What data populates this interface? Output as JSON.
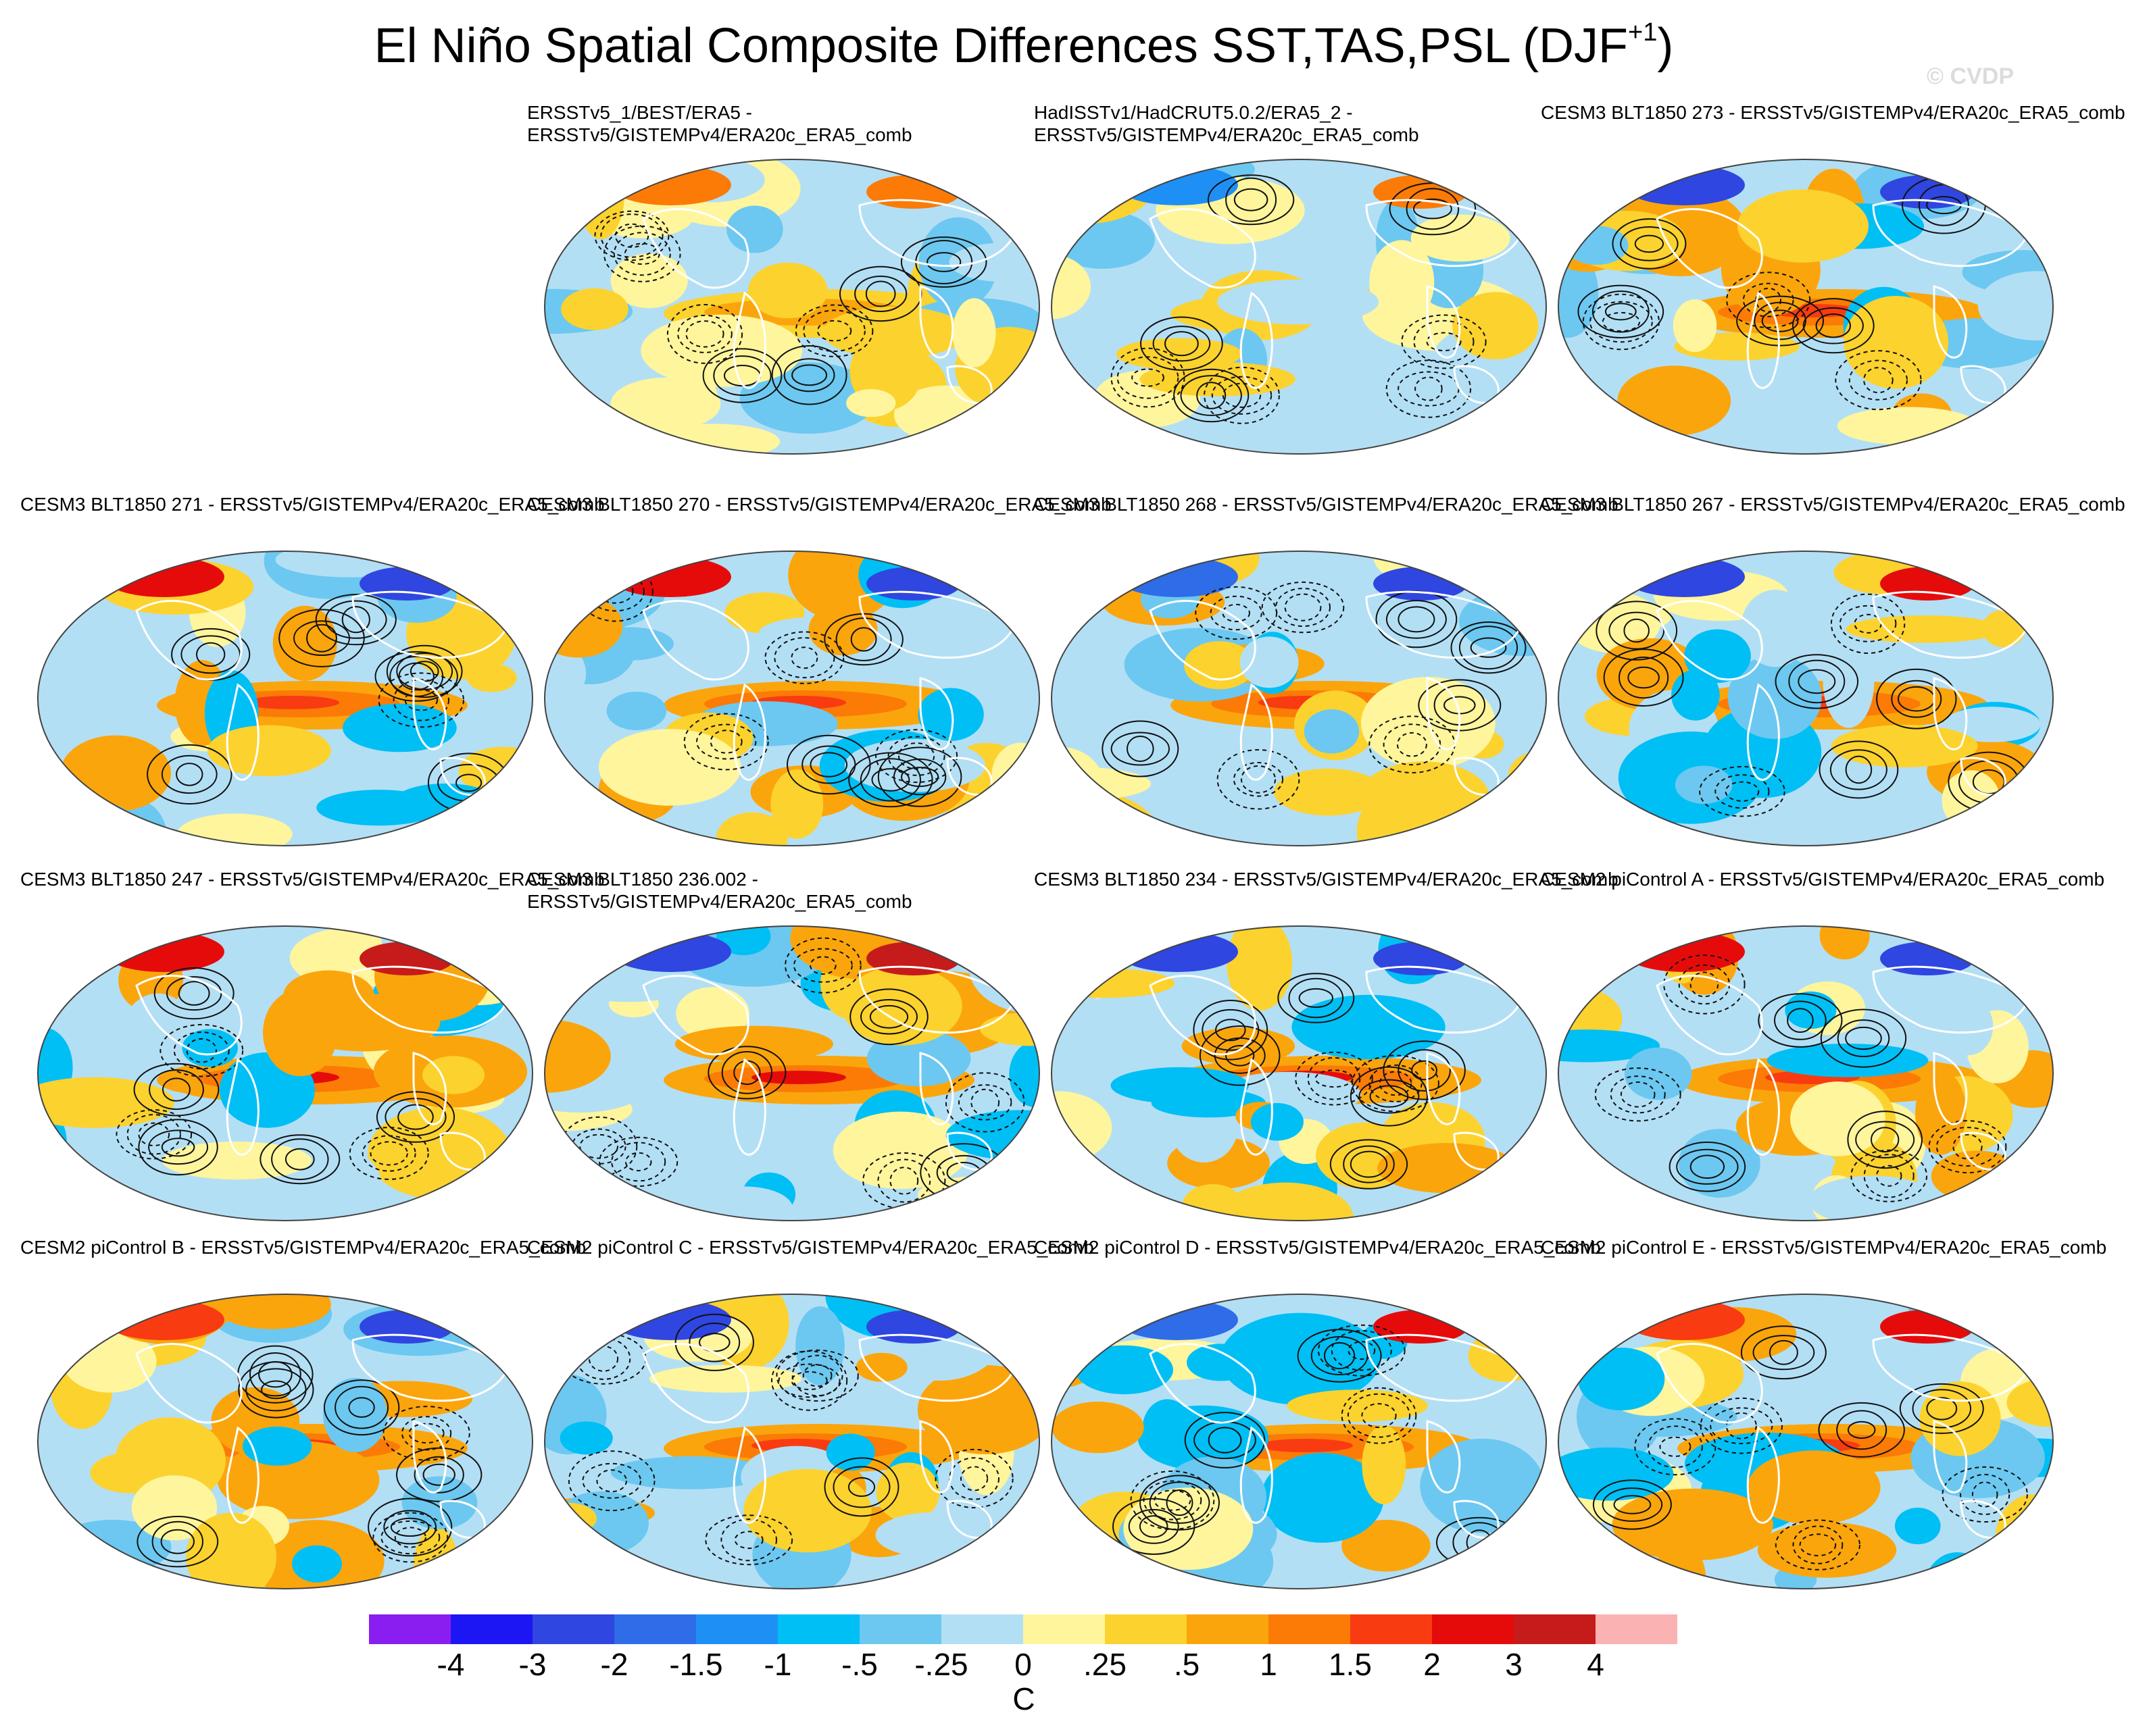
{
  "title": {
    "main": "El Niño Spatial Composite Differences SST,TAS,PSL (DJF",
    "sup": "+1",
    "close": ")"
  },
  "watermark": "© CVDP",
  "colorbar": {
    "units": "C",
    "labels": [
      "-4",
      "-3",
      "-2",
      "-1.5",
      "-1",
      "-.5",
      "-.25",
      "0",
      ".25",
      ".5",
      "1",
      "1.5",
      "2",
      "3",
      "4"
    ],
    "colors": [
      "#8a1ef0",
      "#1c16f5",
      "#2f46e0",
      "#2e6ce8",
      "#1e90f5",
      "#00bff5",
      "#6cc8f0",
      "#b3dff5",
      "#fff59d",
      "#fcd22e",
      "#fba50c",
      "#fb7b06",
      "#f83b11",
      "#e60b0b",
      "#c61b1b",
      "#fbb2b2"
    ]
  },
  "panels": [
    {
      "title": "ERSSTv5_1/BEST/ERA5 -\nERSSTv5/GISTEMPv4/ERA20c_ERA5_comb",
      "intensity": 0.55,
      "seed": 1
    },
    {
      "title": "HadISSTv1/HadCRUT5.0.2/ERA5_2 -\nERSSTv5/GISTEMPv4/ERA20c_ERA5_comb",
      "intensity": 0.55,
      "seed": 2
    },
    {
      "title": "CESM3 BLT1850 273 - ERSSTv5/GISTEMPv4/ERA20c_ERA5_comb",
      "intensity": 1.0,
      "seed": 3
    },
    {
      "title": "CESM3 BLT1850 271 - ERSSTv5/GISTEMPv4/ERA20c_ERA5_comb",
      "intensity": 1.0,
      "seed": 4
    },
    {
      "title": "CESM3 BLT1850 270 - ERSSTv5/GISTEMPv4/ERA20c_ERA5_comb",
      "intensity": 1.0,
      "seed": 5
    },
    {
      "title": "CESM3 BLT1850 268 - ERSSTv5/GISTEMPv4/ERA20c_ERA5_comb",
      "intensity": 0.9,
      "seed": 6
    },
    {
      "title": "CESM3 BLT1850 267 - ERSSTv5/GISTEMPv4/ERA20c_ERA5_comb",
      "intensity": 1.0,
      "seed": 7
    },
    {
      "title": "CESM3 BLT1850 247 - ERSSTv5/GISTEMPv4/ERA20c_ERA5_comb",
      "intensity": 1.2,
      "seed": 8
    },
    {
      "title": "CESM3 BLT1850 236.002 - ERSSTv5/GISTEMPv4/ERA20c_ERA5_comb",
      "intensity": 1.2,
      "seed": 9
    },
    {
      "title": "CESM3 BLT1850 234 - ERSSTv5/GISTEMPv4/ERA20c_ERA5_comb",
      "intensity": 1.2,
      "seed": 10
    },
    {
      "title": "CESM2 piControl A - ERSSTv5/GISTEMPv4/ERA20c_ERA5_comb",
      "intensity": 1.0,
      "seed": 11
    },
    {
      "title": "CESM2 piControl B - ERSSTv5/GISTEMPv4/ERA20c_ERA5_comb",
      "intensity": 0.9,
      "seed": 12
    },
    {
      "title": "CESM2 piControl C - ERSSTv5/GISTEMPv4/ERA20c_ERA5_comb",
      "intensity": 1.0,
      "seed": 13
    },
    {
      "title": "CESM2 piControl D - ERSSTv5/GISTEMPv4/ERA20c_ERA5_comb",
      "intensity": 0.9,
      "seed": 14
    },
    {
      "title": "CESM2 piControl E - ERSSTv5/GISTEMPv4/ERA20c_ERA5_comb",
      "intensity": 0.9,
      "seed": 15
    }
  ]
}
